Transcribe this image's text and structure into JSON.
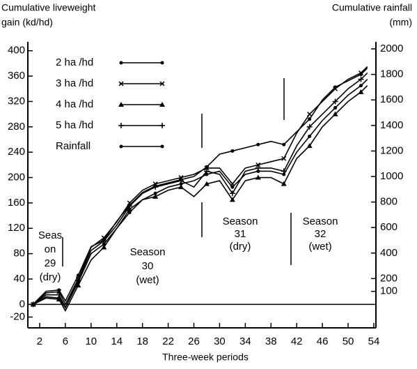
{
  "chart_data": {
    "type": "line",
    "ylabel": [
      "Cumulative liveweight",
      "gain (kd/hd)"
    ],
    "y2label": [
      "Cumulative rainfall",
      "(mm)"
    ],
    "xlabel": "Three-week periods",
    "x": [
      1,
      3,
      5,
      6,
      8,
      10,
      12,
      14,
      16,
      18,
      20,
      22,
      24,
      26,
      28,
      30,
      32,
      34,
      36,
      38,
      40,
      42,
      44,
      46,
      48,
      50,
      52,
      53
    ],
    "series": [
      {
        "name": "2 ha /hd",
        "color": "#000000",
        "marker": "dot",
        "values": [
          0,
          12,
          10,
          -5,
          35,
          80,
          95,
          120,
          145,
          165,
          175,
          185,
          190,
          195,
          205,
          210,
          185,
          205,
          210,
          210,
          205,
          240,
          265,
          290,
          310,
          330,
          345,
          355
        ]
      },
      {
        "name": "3 ha /hd",
        "color": "#000000",
        "marker": "x",
        "values": [
          0,
          18,
          20,
          0,
          40,
          90,
          105,
          130,
          160,
          180,
          190,
          195,
          200,
          205,
          215,
          215,
          190,
          215,
          220,
          225,
          230,
          270,
          300,
          320,
          340,
          355,
          365,
          375
        ]
      },
      {
        "name": "4 ha /hd",
        "color": "#000000",
        "marker": "triangle",
        "values": [
          0,
          10,
          8,
          -10,
          30,
          70,
          90,
          120,
          150,
          165,
          170,
          180,
          185,
          170,
          190,
          195,
          165,
          195,
          200,
          200,
          190,
          230,
          250,
          280,
          300,
          320,
          335,
          345
        ]
      },
      {
        "name": "5 ha /hd",
        "color": "#000000",
        "marker": "plus",
        "values": [
          0,
          15,
          15,
          -5,
          38,
          85,
          100,
          125,
          155,
          175,
          185,
          190,
          195,
          185,
          210,
          205,
          175,
          210,
          215,
          215,
          210,
          250,
          280,
          300,
          320,
          340,
          355,
          365
        ]
      },
      {
        "name": "Rainfall",
        "color": "#000000",
        "marker": "dot",
        "axis": "y2",
        "values": [
          0,
          100,
          110,
          25,
          225,
          450,
          500,
          650,
          775,
          875,
          925,
          950,
          975,
          1000,
          1075,
          1175,
          1200,
          1225,
          1250,
          1275,
          1250,
          1350,
          1450,
          1600,
          1700,
          1750,
          1800,
          1850
        ]
      }
    ],
    "xlim": [
      0.16,
      54.33
    ],
    "xticks": [
      2,
      6,
      10,
      14,
      18,
      22,
      26,
      30,
      34,
      38,
      42,
      46,
      50,
      54
    ],
    "ylim": [
      -37,
      414
    ],
    "yticks": [
      -20,
      0,
      40,
      80,
      120,
      160,
      200,
      240,
      280,
      320,
      360,
      400
    ],
    "y2lim": [
      -186,
      2055
    ],
    "y2ticks": [
      100,
      200,
      400,
      600,
      800,
      1000,
      1200,
      1400,
      1600,
      1800,
      2000
    ],
    "annotations": [
      [
        "Seas",
        "on",
        "29",
        "(dry)"
      ],
      [
        "Season",
        "30",
        "(wet)"
      ],
      [
        "Season",
        "31",
        "(dry)"
      ],
      [
        "Season",
        "32",
        "(wet)"
      ]
    ]
  }
}
